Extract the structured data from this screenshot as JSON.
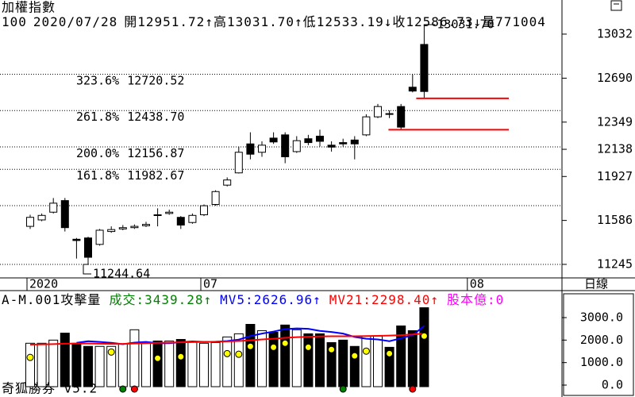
{
  "chart_data": {
    "type": "candlestick",
    "title": "加權指數",
    "header": {
      "count": 100,
      "date": "2020/07/28",
      "labels": [
        "開",
        "高",
        "低",
        "收",
        "量"
      ],
      "value_labels": [
        "12951.72",
        "13031.70",
        "12533.19",
        "12586.73",
        "771004"
      ],
      "arrows": [
        "↑",
        "↑",
        "↓",
        "↓"
      ]
    },
    "period": "日線",
    "footer": "奇狐勝券 v5.2",
    "categories": [
      "2020",
      null,
      null,
      null,
      null,
      null,
      null,
      null,
      null,
      null,
      null,
      null,
      null,
      null,
      null,
      "07",
      null,
      null,
      null,
      null,
      null,
      null,
      null,
      null,
      null,
      null,
      null,
      null,
      null,
      null,
      null,
      null,
      null,
      null,
      null,
      null,
      null,
      null,
      "08",
      null,
      null,
      null,
      null,
      null,
      null,
      null
    ],
    "open": [
      11540,
      11590,
      11650,
      11740,
      11440,
      11450,
      11400,
      11500,
      11520,
      11530,
      11545,
      11630,
      11640,
      11610,
      11570,
      11630,
      11710,
      11860,
      11955,
      12180,
      12115,
      12225,
      12250,
      12120,
      12220,
      12240,
      12170,
      12190,
      12210,
      12250,
      12390,
      12415,
      12470,
      12620,
      12951.72,
      null,
      null,
      null,
      null,
      null,
      null,
      null,
      null,
      null,
      null,
      null
    ],
    "high": [
      11630,
      11640,
      11760,
      11760,
      11450,
      11460,
      11520,
      11540,
      11550,
      11555,
      11575,
      11680,
      11670,
      11620,
      11640,
      11710,
      11820,
      11920,
      12160,
      12270,
      12200,
      12270,
      12270,
      12240,
      12250,
      12290,
      12200,
      12220,
      12240,
      12410,
      12490,
      12440,
      12490,
      12720,
      13031.7,
      null,
      null,
      null,
      null,
      null,
      null,
      null,
      null,
      null,
      null,
      null
    ],
    "low": [
      11520,
      11580,
      11640,
      11500,
      11290,
      11244.64,
      11390,
      11490,
      11510,
      11520,
      11535,
      11540,
      11630,
      11520,
      11560,
      11620,
      11700,
      11850,
      11950,
      12060,
      12080,
      12180,
      12030,
      12110,
      12170,
      12160,
      12120,
      12160,
      12060,
      12240,
      12380,
      12380,
      12290,
      12580,
      12533.19,
      null,
      null,
      null,
      null,
      null,
      null,
      null,
      null,
      null,
      null,
      null
    ],
    "close": [
      11610,
      11625,
      11720,
      11530,
      11430,
      11300,
      11510,
      11515,
      11530,
      11540,
      11555,
      11625,
      11650,
      11550,
      11625,
      11700,
      11810,
      11900,
      12115,
      12100,
      12170,
      12195,
      12080,
      12205,
      12190,
      12200,
      12155,
      12180,
      12180,
      12390,
      12470,
      12410,
      12310,
      12590,
      12586.73,
      null,
      null,
      null,
      null,
      null,
      null,
      null,
      null,
      null,
      null,
      null
    ],
    "ylim": [
      11140,
      13081
    ],
    "yticks": [
      13032,
      12690,
      12349,
      12138,
      11927,
      11586,
      11245
    ],
    "fib": {
      "ratios": [
        "323.6%",
        "261.8%",
        "200.0%",
        "161.8%",
        null,
        null
      ],
      "values": [
        12720.52,
        12438.7,
        12156.87,
        11982.67,
        11700.74,
        11244.64
      ],
      "value_labels": [
        "12720.52",
        "12438.70",
        "12156.87",
        "11982.67",
        null,
        null
      ],
      "color": "#0000c0"
    },
    "support_lines": {
      "values": [
        12533.19,
        12290
      ],
      "color": "#ff0000"
    },
    "volume_header": {
      "title": "A-M.001攻擊量",
      "items": [
        {
          "label": "成交:",
          "value_label": "3439.28",
          "arrow": "↑",
          "color": "#008000"
        },
        {
          "label": "MV5:",
          "value_label": "2626.96",
          "arrow": "↑",
          "color": "#0000ff"
        },
        {
          "label": "MV21:",
          "value_label": "2298.40",
          "arrow": "↑",
          "color": "#ff0000"
        },
        {
          "label": "股本億:",
          "value_label": "0",
          "color": "#ff00ff"
        }
      ]
    },
    "volume": [
      1860,
      1860,
      2000,
      2310,
      1860,
      1720,
      1720,
      1720,
      1820,
      2460,
      1860,
      1960,
      1960,
      2030,
      1930,
      1860,
      1890,
      2140,
      2280,
      2700,
      2420,
      2350,
      2670,
      2460,
      2280,
      2280,
      1890,
      2000,
      1720,
      2180,
      2180,
      1680,
      2630,
      2420,
      3439.28,
      null,
      null,
      null,
      null,
      null,
      null,
      null,
      null,
      null,
      null,
      null
    ],
    "mv5": [
      null,
      null,
      null,
      null,
      1880,
      1950,
      1920,
      1880,
      1820,
      1890,
      1920,
      1860,
      1860,
      1910,
      1940,
      1920,
      1930,
      1960,
      2020,
      2180,
      2290,
      2380,
      2490,
      2520,
      2500,
      2410,
      2360,
      2290,
      2140,
      2060,
      2030,
      1950,
      2080,
      2220,
      2626.96,
      null,
      null,
      null,
      null,
      null,
      null,
      null,
      null,
      null,
      null,
      null
    ],
    "mv21": [
      1800,
      1810,
      1820,
      1840,
      1850,
      1850,
      1840,
      1830,
      1830,
      1850,
      1860,
      1880,
      1890,
      1900,
      1910,
      1920,
      1930,
      1940,
      1960,
      1990,
      2030,
      2060,
      2100,
      2130,
      2150,
      2160,
      2170,
      2170,
      2170,
      2180,
      2190,
      2200,
      2220,
      2250,
      2298.4,
      null,
      null,
      null,
      null,
      null,
      null,
      null,
      null,
      null,
      null,
      null
    ],
    "dots": [
      1230,
      null,
      null,
      null,
      null,
      null,
      null,
      1470,
      null,
      null,
      null,
      1190,
      null,
      1260,
      null,
      null,
      null,
      1400,
      1370,
      1720,
      null,
      1680,
      1860,
      null,
      1680,
      null,
      1580,
      null,
      1300,
      1510,
      null,
      1400,
      null,
      null,
      2180,
      null,
      null,
      null,
      null,
      null,
      null,
      null,
      null,
      null,
      null,
      null
    ],
    "dot_color": "#ffff00",
    "signal_colors": [
      null,
      null,
      null,
      null,
      null,
      null,
      null,
      null,
      "#008000",
      "#ff0000",
      null,
      null,
      null,
      null,
      null,
      null,
      null,
      null,
      null,
      null,
      null,
      null,
      null,
      null,
      null,
      null,
      null,
      "#008000",
      null,
      null,
      null,
      null,
      null,
      "#ff0000",
      null,
      null,
      null,
      null,
      null,
      null,
      null,
      null,
      null,
      null,
      null,
      null
    ],
    "vlim": [
      0,
      3600
    ],
    "vticks": [
      {
        "value": 3000,
        "label": "3000.0"
      },
      {
        "value": 2000,
        "label": "2000.0"
      },
      {
        "value": 1000,
        "label": "1000.0"
      },
      {
        "value": 0,
        "label": "0.0"
      }
    ]
  }
}
